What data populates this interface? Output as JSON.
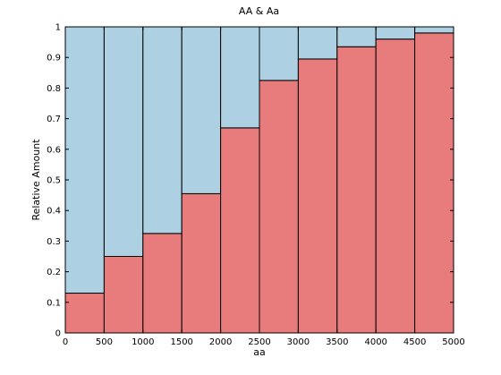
{
  "chart_data": {
    "type": "bar",
    "title": "AA & Aa",
    "xlabel": "aa",
    "ylabel": "Relative Amount",
    "xlim": [
      0,
      5000
    ],
    "ylim": [
      0,
      1
    ],
    "grid": false,
    "bin_edges": [
      0,
      500,
      1000,
      1500,
      2000,
      2500,
      3000,
      3500,
      4000,
      4500,
      5000
    ],
    "x_ticks": [
      0,
      500,
      1000,
      1500,
      2000,
      2500,
      3000,
      3500,
      4000,
      4500,
      5000
    ],
    "y_ticks": [
      0,
      0.1,
      0.2,
      0.3,
      0.4,
      0.5,
      0.6,
      0.7,
      0.8,
      0.9,
      1
    ],
    "series": [
      {
        "name": "",
        "color": "#e87b7b",
        "values": [
          0.13,
          0.25,
          0.325,
          0.455,
          0.67,
          0.825,
          0.895,
          0.935,
          0.96,
          0.98
        ]
      },
      {
        "name": "",
        "color": "#add1e2",
        "values": [
          0.87,
          0.75,
          0.675,
          0.545,
          0.33,
          0.175,
          0.105,
          0.065,
          0.04,
          0.02
        ]
      }
    ]
  }
}
